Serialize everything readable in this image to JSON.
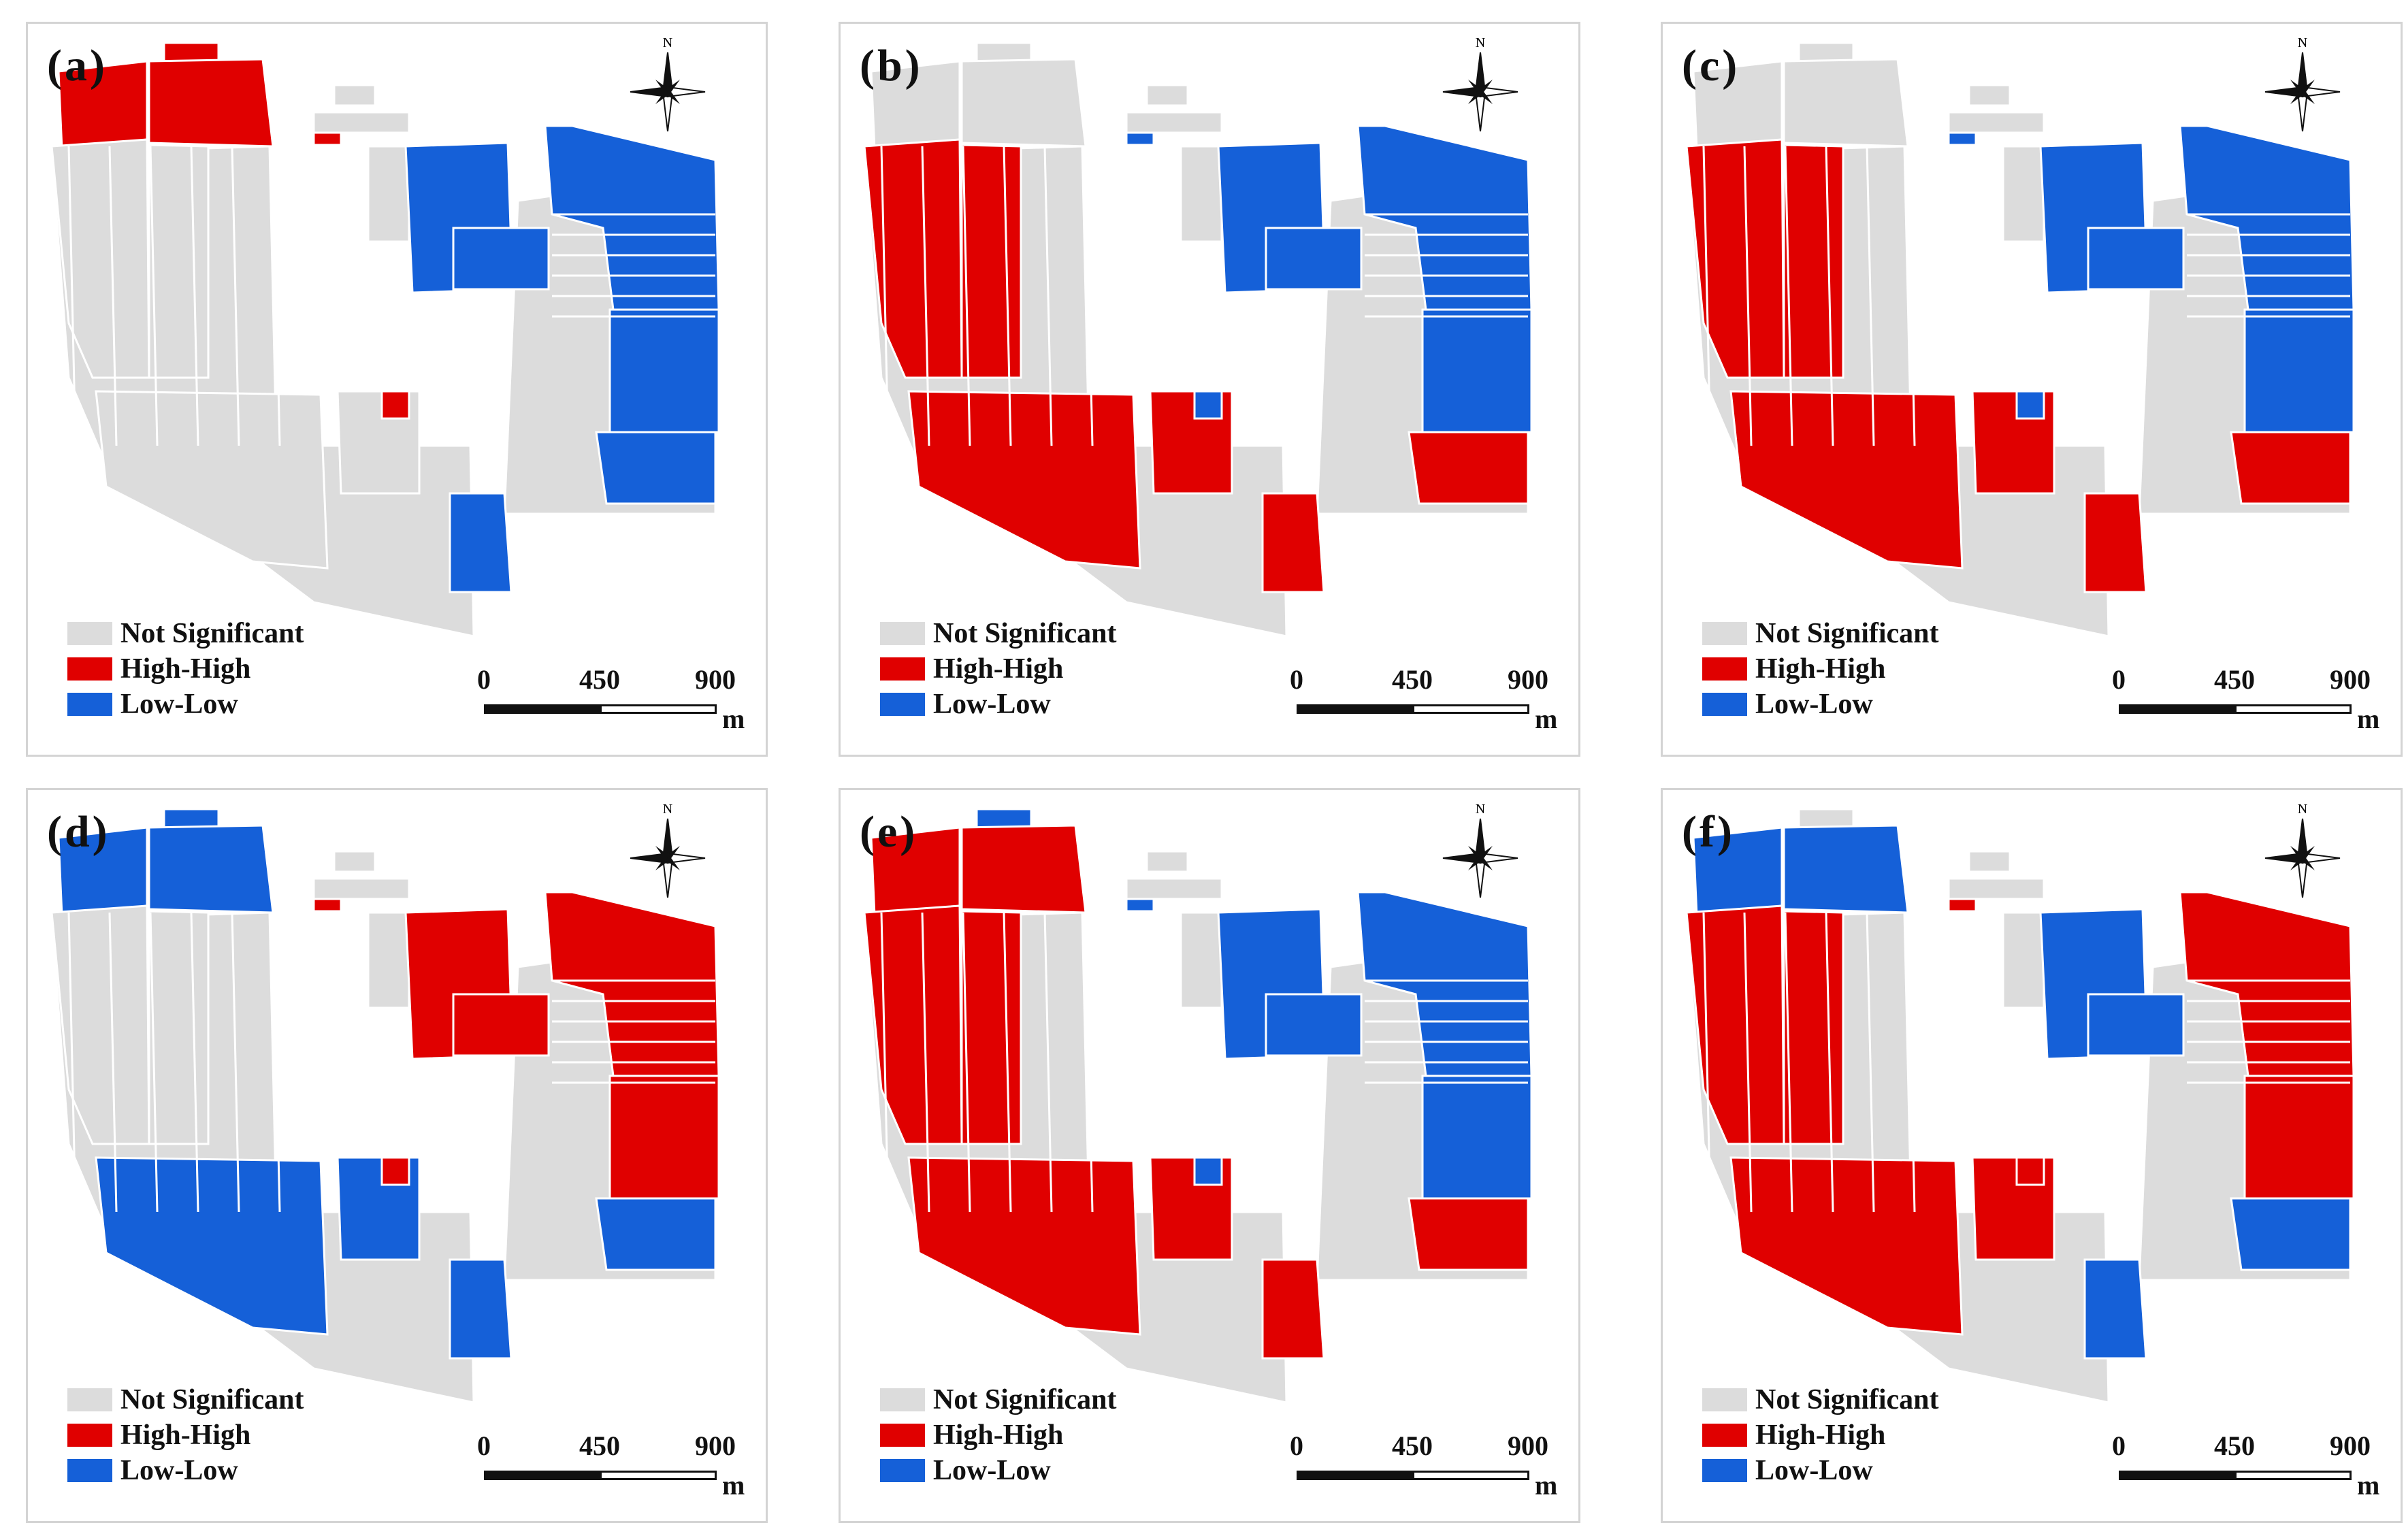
{
  "colors": {
    "not_significant": "#dcdcdc",
    "high_high": "#e00000",
    "low_low": "#1560d8"
  },
  "panels": [
    {
      "label": "(a)"
    },
    {
      "label": "(b)"
    },
    {
      "label": "(c)"
    },
    {
      "label": "(d)"
    },
    {
      "label": "(e)"
    },
    {
      "label": "(f)"
    }
  ],
  "legend": {
    "not_significant": "Not Significant",
    "high_high": "High-High",
    "low_low": "Low-Low"
  },
  "north_label": "N",
  "scale": {
    "tick0": "0",
    "tick1": "450",
    "tick2": "900",
    "unit": "m"
  },
  "zones": {
    "a": {
      "nw_top": "HH",
      "nw_mid": "HH",
      "west": "NS",
      "center": "LL",
      "east": "LL",
      "south": "NS",
      "southeast": "LL",
      "small": "HH"
    },
    "b": {
      "nw_top": "NS",
      "nw_mid": "NS",
      "west": "HH",
      "center": "LL",
      "east": "LL",
      "south": "HH",
      "southeast": "HH",
      "small": "LL"
    },
    "c": {
      "nw_top": "NS",
      "nw_mid": "NS",
      "west": "HH",
      "center": "LL",
      "east": "LL",
      "south": "HH",
      "southeast": "HH",
      "small": "LL"
    },
    "d": {
      "nw_top": "LL",
      "nw_mid": "LL",
      "west": "NS",
      "center": "HH",
      "east": "HH",
      "south": "LL",
      "southeast": "LL",
      "small": "HH"
    },
    "e": {
      "nw_top": "LL",
      "nw_mid": "HH",
      "west": "HH",
      "center": "LL",
      "east": "LL",
      "south": "HH",
      "southeast": "HH",
      "small": "LL"
    },
    "f": {
      "nw_top": "NS",
      "nw_mid": "LL",
      "west": "HH",
      "center": "LL",
      "east": "HH",
      "south": "HH",
      "southeast": "LL",
      "small": "HH"
    }
  }
}
